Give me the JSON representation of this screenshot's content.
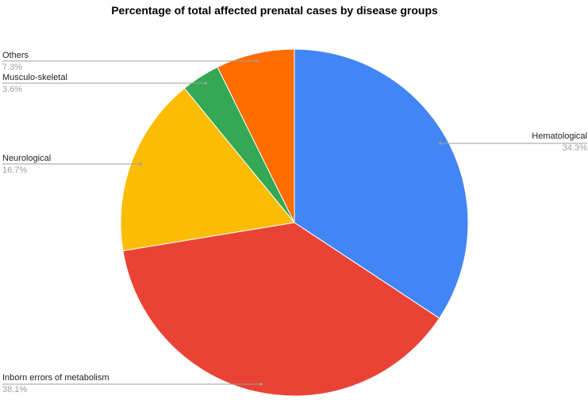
{
  "chart_data": {
    "type": "pie",
    "title": "Percentage of total affected prenatal cases by disease groups",
    "legend": "none",
    "slices": [
      {
        "label": "Hematological",
        "value": 34.3,
        "value_label": "34.3%",
        "color": "#4285f4"
      },
      {
        "label": "Inborn errors of metabolism",
        "value": 38.1,
        "value_label": "38.1%",
        "color": "#ea4335"
      },
      {
        "label": "Neurological",
        "value": 16.7,
        "value_label": "16.7%",
        "color": "#fbbc04"
      },
      {
        "label": "Musculo-skeletal",
        "value": 3.6,
        "value_label": "3.6%",
        "color": "#34a853"
      },
      {
        "label": "Others",
        "value": 7.3,
        "value_label": "7.3%",
        "color": "#ff6d01"
      }
    ]
  }
}
